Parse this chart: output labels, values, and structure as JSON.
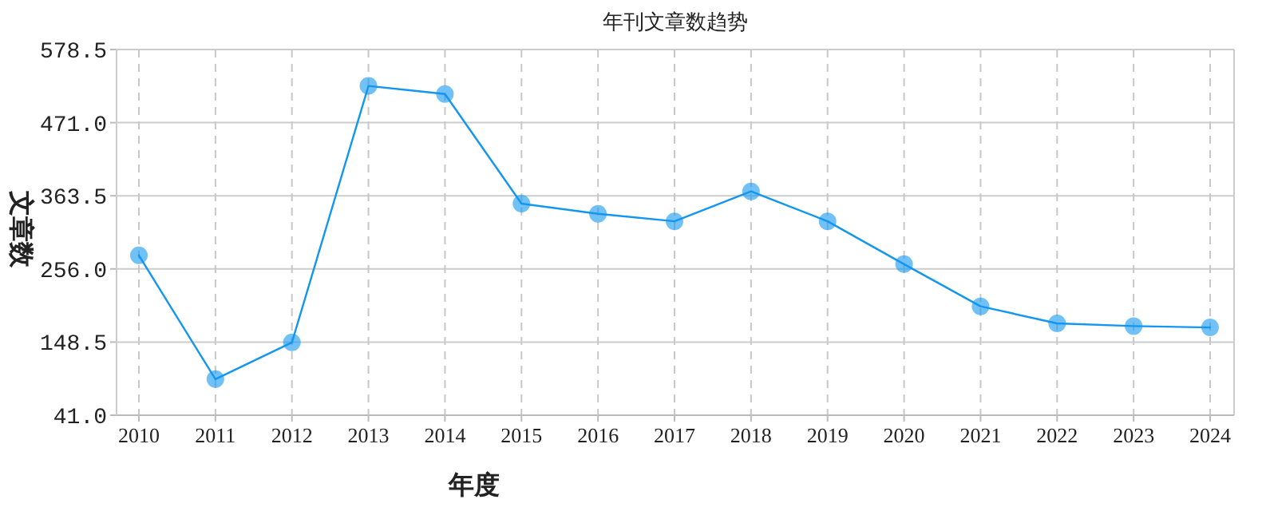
{
  "chart_data": {
    "type": "line",
    "title": "年刊文章数趋势",
    "xlabel": "年度",
    "ylabel": "文章数",
    "categories": [
      "2010",
      "2011",
      "2012",
      "2013",
      "2014",
      "2015",
      "2016",
      "2017",
      "2018",
      "2019",
      "2020",
      "2021",
      "2022",
      "2023",
      "2024"
    ],
    "series": [
      {
        "color": "#1296f0",
        "values": [
          276,
          94,
          148,
          525,
          513,
          352,
          337,
          326,
          370,
          326,
          263,
          201,
          176,
          172,
          170
        ]
      }
    ],
    "ylim": [
      41,
      578.5
    ],
    "yticks": [
      {
        "value": 41,
        "label": "41.0"
      },
      {
        "value": 148.5,
        "label": "148.5"
      },
      {
        "value": 256,
        "label": "256.0"
      },
      {
        "value": 363.5,
        "label": "363.5"
      },
      {
        "value": 471,
        "label": "471.0"
      },
      {
        "value": 578.5,
        "label": "578.5"
      }
    ],
    "grid": true,
    "marker": "circle",
    "line_style": "solid"
  }
}
